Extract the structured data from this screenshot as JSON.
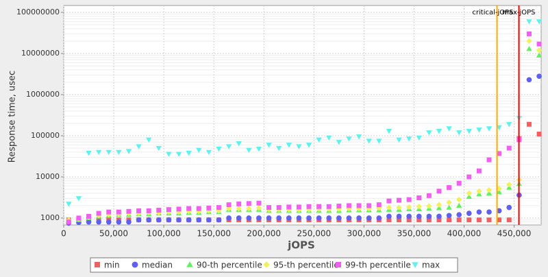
{
  "chart_data": {
    "type": "scatter",
    "xlabel": "jOPS",
    "ylabel": "Response time, usec",
    "log_y": true,
    "grid": true,
    "xlim": [
      0,
      477000
    ],
    "ylim": [
      680,
      147000000
    ],
    "xticks": [
      0,
      {
        "value": 50000,
        "label": "50,000"
      },
      {
        "value": 100000,
        "label": "100,000"
      },
      {
        "value": 150000,
        "label": "150,000"
      },
      {
        "value": 200000,
        "label": "200,000"
      },
      {
        "value": 250000,
        "label": "250,000"
      },
      {
        "value": 300000,
        "label": "300,000"
      },
      {
        "value": 350000,
        "label": "350,000"
      },
      {
        "value": 400000,
        "label": "400,000"
      },
      {
        "value": 450000,
        "label": "450,000"
      }
    ],
    "yticks": [
      1000,
      10000,
      100000,
      1000000,
      10000000,
      100000000
    ],
    "x": [
      5000,
      15000,
      25000,
      35000,
      45000,
      55000,
      65000,
      75000,
      85000,
      95000,
      105000,
      115000,
      125000,
      135000,
      145000,
      155000,
      165000,
      175000,
      185000,
      195000,
      205000,
      215000,
      225000,
      235000,
      245000,
      255000,
      265000,
      275000,
      285000,
      295000,
      305000,
      315000,
      325000,
      335000,
      345000,
      355000,
      365000,
      375000,
      385000,
      395000,
      405000,
      415000,
      425000,
      435000,
      445000,
      455000,
      465000,
      475000
    ],
    "series": [
      {
        "name": "min",
        "color": "#f06060",
        "marker": "square",
        "values": [
          900,
          900,
          900,
          900,
          900,
          900,
          900,
          900,
          900,
          900,
          900,
          900,
          900,
          900,
          900,
          900,
          900,
          900,
          900,
          900,
          900,
          900,
          900,
          900,
          900,
          900,
          900,
          900,
          900,
          900,
          900,
          900,
          900,
          900,
          900,
          900,
          900,
          900,
          900,
          900,
          900,
          900,
          900,
          900,
          900,
          85000,
          190000,
          110000
        ]
      },
      {
        "name": "median",
        "color": "#6060f0",
        "marker": "circle",
        "values": [
          750,
          780,
          800,
          800,
          800,
          800,
          800,
          900,
          900,
          900,
          900,
          900,
          900,
          900,
          900,
          900,
          1000,
          1000,
          1000,
          1000,
          1000,
          1000,
          1000,
          1000,
          1000,
          1000,
          1000,
          1000,
          1000,
          1000,
          1000,
          1000,
          1100,
          1100,
          1100,
          1100,
          1100,
          1100,
          1150,
          1200,
          1300,
          1400,
          1400,
          1500,
          1800,
          3600,
          2300000,
          2800000
        ]
      },
      {
        "name": "90-th percentile",
        "color": "#60f060",
        "marker": "triangle-up",
        "values": [
          850,
          900,
          1000,
          1100,
          1150,
          1200,
          1200,
          1250,
          1250,
          1300,
          1300,
          1300,
          1350,
          1350,
          1400,
          1400,
          1600,
          1600,
          1600,
          1600,
          1500,
          1500,
          1500,
          1500,
          1500,
          1500,
          1500,
          1500,
          1550,
          1550,
          1550,
          1550,
          1600,
          1600,
          1650,
          1650,
          1700,
          1750,
          1800,
          2000,
          3300,
          3800,
          4000,
          4300,
          5500,
          6800,
          13000000,
          9000000
        ]
      },
      {
        "name": "95-th percentile",
        "color": "#f0f060",
        "marker": "diamond",
        "values": [
          900,
          950,
          1050,
          1150,
          1200,
          1250,
          1300,
          1300,
          1350,
          1350,
          1400,
          1400,
          1450,
          1450,
          1500,
          1500,
          1700,
          1700,
          1700,
          1750,
          1600,
          1600,
          1600,
          1600,
          1600,
          1650,
          1650,
          1650,
          1700,
          1700,
          1700,
          1750,
          1800,
          1800,
          1850,
          1900,
          1950,
          2100,
          2400,
          2800,
          4000,
          4500,
          4800,
          5200,
          6500,
          8500,
          20000000,
          12000000
        ]
      },
      {
        "name": "99-th percentile",
        "color": "#f060f0",
        "marker": "square",
        "values": [
          800,
          1000,
          1100,
          1300,
          1400,
          1400,
          1450,
          1500,
          1500,
          1550,
          1600,
          1650,
          1700,
          1700,
          1750,
          1800,
          2100,
          2200,
          2250,
          2300,
          1800,
          1800,
          1850,
          1850,
          1900,
          1900,
          1900,
          1950,
          2000,
          2000,
          2000,
          2100,
          2600,
          2700,
          2800,
          3100,
          3500,
          4500,
          5500,
          7000,
          10000,
          14000,
          26000,
          37000,
          50000,
          80000,
          30000000,
          17000000
        ]
      },
      {
        "name": "max",
        "color": "#60f0f0",
        "marker": "triangle-down",
        "values": [
          2200,
          3000,
          38000,
          40000,
          40000,
          40000,
          42000,
          55000,
          80000,
          50000,
          36000,
          36000,
          38000,
          45000,
          40000,
          48000,
          55000,
          65000,
          45000,
          48000,
          60000,
          50000,
          60000,
          55000,
          60000,
          80000,
          90000,
          70000,
          85000,
          95000,
          75000,
          75000,
          130000,
          80000,
          85000,
          90000,
          120000,
          130000,
          150000,
          120000,
          130000,
          140000,
          150000,
          160000,
          190000,
          270000,
          60000000,
          60000000
        ]
      }
    ],
    "annotations": [
      {
        "label": "critical-jOPS",
        "x": 432900,
        "color": "#ffaa00"
      },
      {
        "label": "max-jOPS",
        "x": 454800,
        "color": "#ee0000"
      }
    ]
  }
}
